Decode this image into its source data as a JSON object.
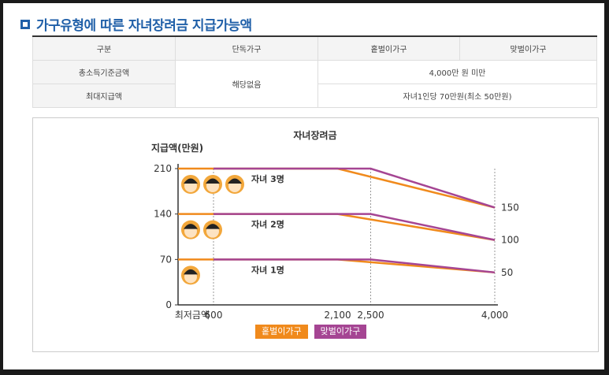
{
  "heading": {
    "title": "가구유형에 따른 자녀장려금 지급가능액"
  },
  "table": {
    "headers": [
      "구분",
      "단독가구",
      "홑벌이가구",
      "맞벌이가구"
    ],
    "rows": [
      {
        "label": "총소득기준금액",
        "single": "해당없음",
        "value": "4,000만 원 미만"
      },
      {
        "label": "최대지급액",
        "value": "자녀1인당 70만원(최소 50만원)"
      }
    ]
  },
  "chart_data": {
    "type": "line",
    "title": "자녀장려금",
    "ylabel": "지급액(만원)",
    "xlabel": "",
    "x_ticks": [
      "최저금액",
      "600",
      "2,100",
      "2,500",
      "4,000"
    ],
    "y_ticks": [
      0,
      70,
      140,
      210
    ],
    "ylim": [
      0,
      210
    ],
    "right_labels": [
      "150",
      "100",
      "50"
    ],
    "groups": [
      {
        "label": "자녀 3명",
        "children": 3,
        "series": [
          {
            "name": "홑벌이가구",
            "x": [
              0,
              600,
              2100,
              4000
            ],
            "y": [
              210,
              210,
              210,
              150
            ]
          },
          {
            "name": "맞벌이가구",
            "x": [
              600,
              2500,
              4000
            ],
            "y": [
              210,
              210,
              150
            ]
          }
        ]
      },
      {
        "label": "자녀 2명",
        "children": 2,
        "series": [
          {
            "name": "홑벌이가구",
            "x": [
              0,
              600,
              2100,
              4000
            ],
            "y": [
              140,
              140,
              140,
              100
            ]
          },
          {
            "name": "맞벌이가구",
            "x": [
              600,
              2500,
              4000
            ],
            "y": [
              140,
              140,
              100
            ]
          }
        ]
      },
      {
        "label": "자녀 1명",
        "children": 1,
        "series": [
          {
            "name": "홑벌이가구",
            "x": [
              0,
              600,
              2100,
              4000
            ],
            "y": [
              70,
              70,
              70,
              50
            ]
          },
          {
            "name": "맞벌이가구",
            "x": [
              600,
              2500,
              4000
            ],
            "y": [
              70,
              70,
              50
            ]
          }
        ]
      }
    ],
    "legend": [
      {
        "name": "홑벌이가구",
        "color": "#f08a1c"
      },
      {
        "name": "맞벌이가구",
        "color": "#a54593"
      }
    ]
  }
}
